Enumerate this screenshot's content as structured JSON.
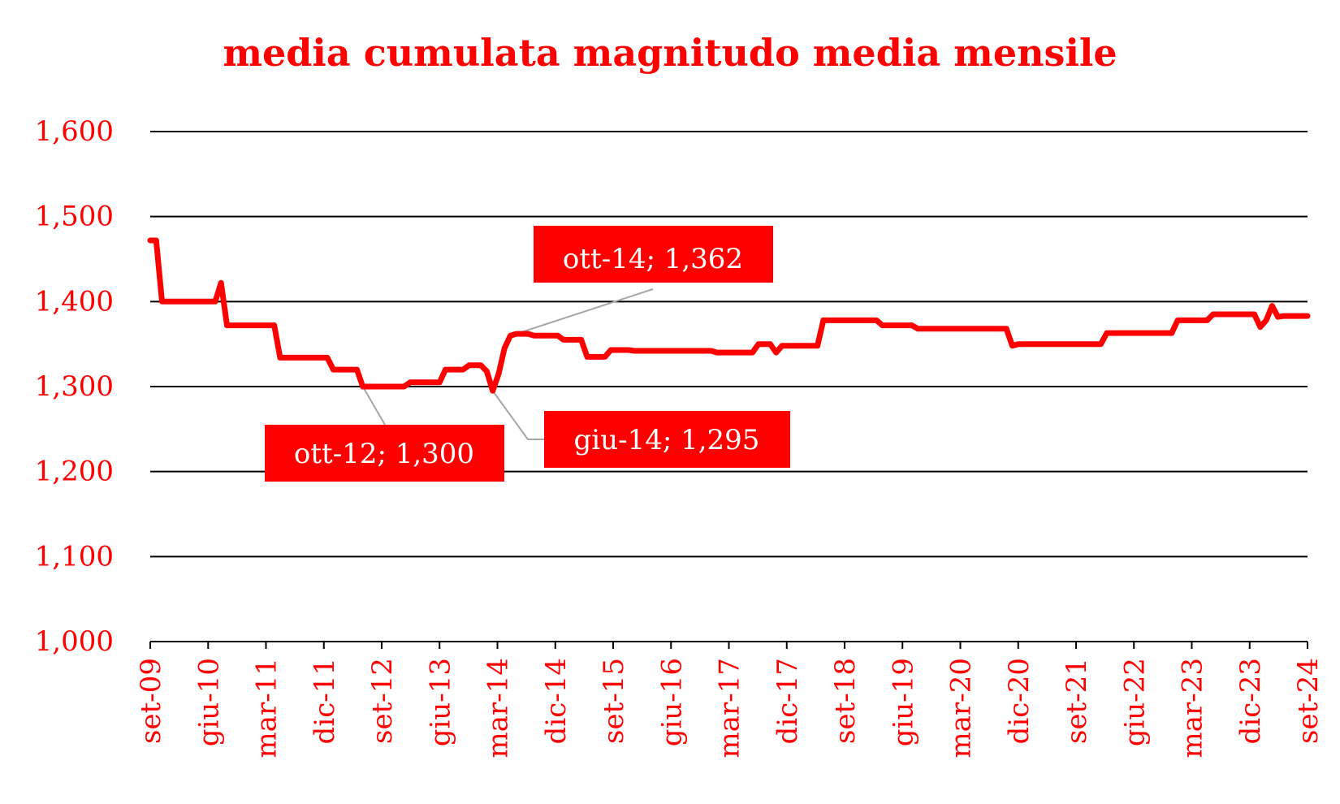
{
  "chart_data": {
    "type": "line",
    "title": "media cumulata magnitudo media mensile",
    "xlabel": "",
    "ylabel": "",
    "ylim": [
      1.0,
      1.6
    ],
    "y_ticks": [
      "1,000",
      "1,100",
      "1,200",
      "1,300",
      "1,400",
      "1,500",
      "1,600"
    ],
    "x_ticks": [
      "set-09",
      "giu-10",
      "mar-11",
      "dic-11",
      "set-12",
      "giu-13",
      "mar-14",
      "dic-14",
      "set-15",
      "giu-16",
      "mar-17",
      "dic-17",
      "set-18",
      "giu-19",
      "mar-20",
      "dic-20",
      "set-21",
      "giu-22",
      "mar-23",
      "dic-23",
      "set-24"
    ],
    "grid": true,
    "legend": "none",
    "line_color": "#ff0000",
    "series": [
      {
        "x_start": "set-09",
        "frequency": "monthly",
        "values": [
          1.472,
          1.472,
          1.4,
          1.4,
          1.4,
          1.4,
          1.4,
          1.4,
          1.4,
          1.4,
          1.4,
          1.4,
          1.422,
          1.372,
          1.372,
          1.372,
          1.372,
          1.372,
          1.372,
          1.372,
          1.372,
          1.372,
          1.334,
          1.334,
          1.334,
          1.334,
          1.334,
          1.334,
          1.334,
          1.334,
          1.334,
          1.32,
          1.32,
          1.32,
          1.32,
          1.32,
          1.3,
          1.3,
          1.3,
          1.3,
          1.3,
          1.3,
          1.3,
          1.3,
          1.305,
          1.305,
          1.305,
          1.305,
          1.305,
          1.305,
          1.32,
          1.32,
          1.32,
          1.32,
          1.325,
          1.325,
          1.325,
          1.318,
          1.295,
          1.315,
          1.345,
          1.36,
          1.362,
          1.362,
          1.362,
          1.36,
          1.36,
          1.36,
          1.36,
          1.36,
          1.355,
          1.355,
          1.355,
          1.355,
          1.335,
          1.335,
          1.335,
          1.335,
          1.343,
          1.343,
          1.343,
          1.343,
          1.342,
          1.342,
          1.342,
          1.342,
          1.342,
          1.342,
          1.342,
          1.342,
          1.342,
          1.342,
          1.342,
          1.342,
          1.342,
          1.342,
          1.34,
          1.34,
          1.34,
          1.34,
          1.34,
          1.34,
          1.34,
          1.35,
          1.35,
          1.35,
          1.34,
          1.348,
          1.348,
          1.348,
          1.348,
          1.348,
          1.348,
          1.348,
          1.378,
          1.378,
          1.378,
          1.378,
          1.378,
          1.378,
          1.378,
          1.378,
          1.378,
          1.378,
          1.372,
          1.372,
          1.372,
          1.372,
          1.372,
          1.372,
          1.368,
          1.368,
          1.368,
          1.368,
          1.368,
          1.368,
          1.368,
          1.368,
          1.368,
          1.368,
          1.368,
          1.368,
          1.368,
          1.368,
          1.368,
          1.368,
          1.348,
          1.35,
          1.35,
          1.35,
          1.35,
          1.35,
          1.35,
          1.35,
          1.35,
          1.35,
          1.35,
          1.35,
          1.35,
          1.35,
          1.35,
          1.35,
          1.363,
          1.363,
          1.363,
          1.363,
          1.363,
          1.363,
          1.363,
          1.363,
          1.363,
          1.363,
          1.363,
          1.363,
          1.378,
          1.378,
          1.378,
          1.378,
          1.378,
          1.378,
          1.385,
          1.385,
          1.385,
          1.385,
          1.385,
          1.385,
          1.385,
          1.385,
          1.37,
          1.378,
          1.395,
          1.382,
          1.383,
          1.383,
          1.383,
          1.383,
          1.383
        ]
      }
    ],
    "annotations": [
      {
        "label": "ott-14; 1,362"
      },
      {
        "label": "ott-12; 1,300"
      },
      {
        "label": "giu-14; 1,295"
      }
    ]
  }
}
